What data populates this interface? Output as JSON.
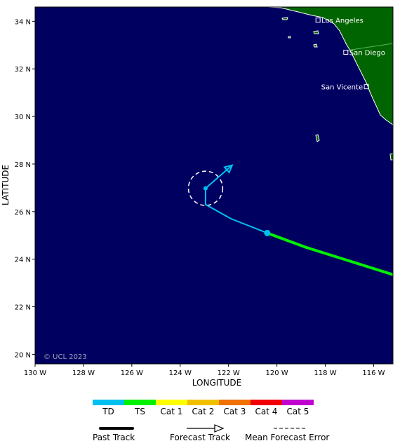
{
  "map": {
    "x_axis_title": "LONGITUDE",
    "y_axis_title": "LATITUDE",
    "lon_range": [
      -130,
      -115.2
    ],
    "lat_range": [
      19.6,
      34.6
    ],
    "lon_ticks": [
      {
        "value": -130,
        "label": "130 W"
      },
      {
        "value": -128,
        "label": "128 W"
      },
      {
        "value": -126,
        "label": "126 W"
      },
      {
        "value": -124,
        "label": "124 W"
      },
      {
        "value": -122,
        "label": "122 W"
      },
      {
        "value": -120,
        "label": "120 W"
      },
      {
        "value": -118,
        "label": "118 W"
      },
      {
        "value": -116,
        "label": "116 W"
      }
    ],
    "lat_ticks": [
      {
        "value": 20,
        "label": "20 N"
      },
      {
        "value": 22,
        "label": "22 N"
      },
      {
        "value": 24,
        "label": "24 N"
      },
      {
        "value": 26,
        "label": "26 N"
      },
      {
        "value": 28,
        "label": "28 N"
      },
      {
        "value": 30,
        "label": "30 N"
      },
      {
        "value": 32,
        "label": "32 N"
      },
      {
        "value": 34,
        "label": "34 N"
      }
    ],
    "ocean_color": "#000060",
    "land_color": "#006400",
    "copyright": "© UCL 2023"
  },
  "cities": [
    {
      "name": "Los Angeles",
      "lon": -118.3,
      "lat": 34.05
    },
    {
      "name": "San Diego",
      "lon": -117.15,
      "lat": 32.7
    },
    {
      "name": "San Vicente",
      "lon": -116.3,
      "lat": 31.25
    }
  ],
  "past_track": [
    {
      "lon": -115.2,
      "lat": 23.35,
      "category": "TS"
    },
    {
      "lon": -118.8,
      "lat": 24.5,
      "category": "TS"
    },
    {
      "lon": -120.4,
      "lat": 25.1,
      "category": "TS"
    }
  ],
  "current_position": {
    "lon": -120.4,
    "lat": 25.1,
    "category": "TD"
  },
  "forecast_track": [
    {
      "lon": -120.4,
      "lat": 25.1,
      "category": "TD"
    },
    {
      "lon": -121.9,
      "lat": 25.7,
      "category": "TD"
    },
    {
      "lon": -122.95,
      "lat": 26.3,
      "category": "TD"
    },
    {
      "lon": -122.95,
      "lat": 26.98,
      "category": "TD"
    },
    {
      "lon": -121.85,
      "lat": 27.95,
      "category": "TD"
    }
  ],
  "forecast_point": {
    "lon": -122.95,
    "lat": 26.98
  },
  "error_cone_radius_deg": 0.72,
  "legend": {
    "categories": [
      {
        "label": "TD",
        "color": "#00c0f0"
      },
      {
        "label": "TS",
        "color": "#00f000"
      },
      {
        "label": "Cat 1",
        "color": "#ffff00"
      },
      {
        "label": "Cat 2",
        "color": "#f0c000"
      },
      {
        "label": "Cat 3",
        "color": "#f07000"
      },
      {
        "label": "Cat 4",
        "color": "#f00000"
      },
      {
        "label": "Cat 5",
        "color": "#c000d0"
      }
    ],
    "past_track_label": "Past Track",
    "forecast_track_label": "Forecast Track",
    "error_label": "Mean Forecast Error"
  }
}
